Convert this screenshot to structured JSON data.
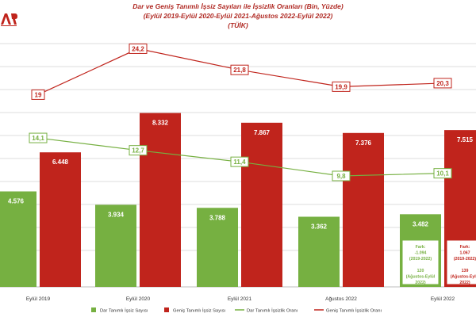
{
  "chart_data": {
    "type": "bar",
    "title": "Dar ve Geniş Tanımlı İşsiz Sayıları ile İşsizlik Oranları (Bin, Yüzde)",
    "subtitle": "(Eylül 2019-Eylül 2020-Eylül 2021-Ağustos 2022-Eylül 2022)",
    "source": "(TÜİK)",
    "categories": [
      "Eylül 2019",
      "Eylül 2020",
      "Eylül 2021",
      "Ağustos 2022",
      "Eylül 2022"
    ],
    "series": [
      {
        "name": "Dar Tanımlı İşsiz Sayısı",
        "kind": "bar",
        "color": "#76b041",
        "values": [
          4576,
          3934,
          3788,
          3362,
          3482
        ],
        "labels": [
          "4.576",
          "3.934",
          "3.788",
          "3.362",
          "3.482"
        ]
      },
      {
        "name": "Geniş Tanımlı İşsiz Sayısı",
        "kind": "bar",
        "color": "#c0241c",
        "values": [
          6448,
          8332,
          7867,
          7376,
          7515
        ],
        "labels": [
          "6.448",
          "8.332",
          "7.867",
          "7.376",
          "7.515"
        ]
      },
      {
        "name": "Dar Tanımlı İşsizlik Oranı",
        "kind": "line",
        "color": "#76b041",
        "values": [
          14.1,
          12.7,
          11.4,
          9.8,
          10.1
        ],
        "labels": [
          "14,1",
          "12,7",
          "11,4",
          "9,8",
          "10,1"
        ]
      },
      {
        "name": "Geniş Tanımlı İşsizlik Oranı",
        "kind": "line",
        "color": "#c0241c",
        "values": [
          19,
          24.2,
          21.8,
          19.9,
          20.3
        ],
        "labels": [
          "19",
          "24,2",
          "21,8",
          "19,9",
          "20,3"
        ]
      }
    ],
    "annotations": [
      {
        "series": "Dar Tanımlı İşsiz Sayısı",
        "category": "Eylül 2022",
        "lines": [
          "Fark:",
          "-1.094",
          "(2019-2022)",
          "",
          "120",
          "(Ağustos-Eylül",
          "2022)"
        ]
      },
      {
        "series": "Geniş Tanımlı İşsiz Sayısı",
        "category": "Eylül 2022",
        "lines": [
          "Fark:",
          "1.067",
          "(2019-2022)",
          "",
          "139",
          "(Ağustos-Eylül",
          "2022)"
        ]
      }
    ],
    "grid": true,
    "legend_position": "bottom"
  }
}
